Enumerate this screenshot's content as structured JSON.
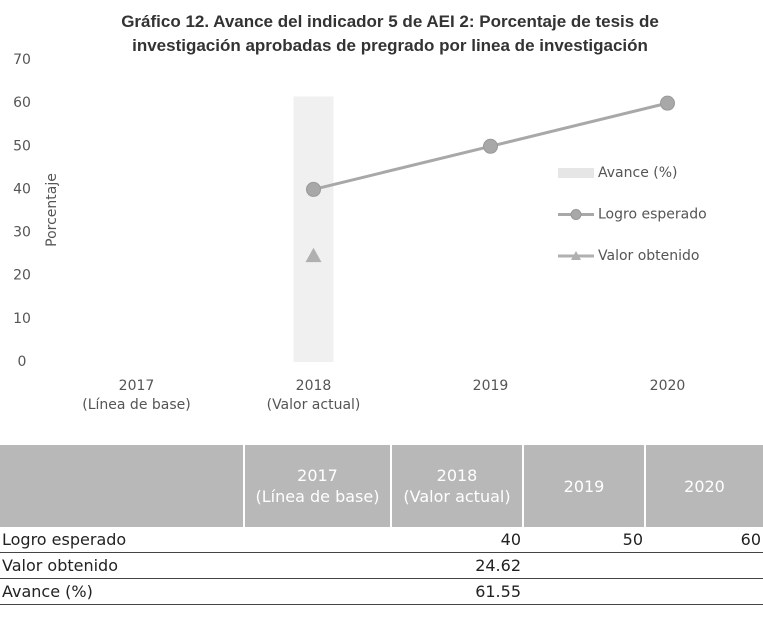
{
  "chart_data": {
    "type": "line",
    "title": "Gráfico 12. Avance del indicador 5 de AEI 2: Porcentaje de tesis de\ninvestigación aprobadas de pregrado por linea de investigación",
    "y_label": "Porcentaje",
    "categories": [
      "2017\n(Línea de base)",
      "2018\n(Valor actual)",
      "2019",
      "2020"
    ],
    "series": [
      {
        "name": "Avance (%)",
        "type": "bar",
        "color": "#e6e6e6",
        "values": [
          null,
          61.55,
          null,
          null
        ]
      },
      {
        "name": "Logro esperado",
        "type": "line",
        "marker": "circle",
        "color": "#a8a8a8",
        "values": [
          null,
          40,
          50,
          60
        ]
      },
      {
        "name": "Valor obtenido",
        "type": "line",
        "marker": "triangle",
        "color": "#b0b0b0",
        "values": [
          null,
          24.62,
          null,
          null
        ]
      }
    ],
    "ylim": [
      0,
      70
    ],
    "yticks": [
      0,
      10,
      20,
      30,
      40,
      50,
      60,
      70
    ],
    "grid": false,
    "legend": "right"
  }
}
